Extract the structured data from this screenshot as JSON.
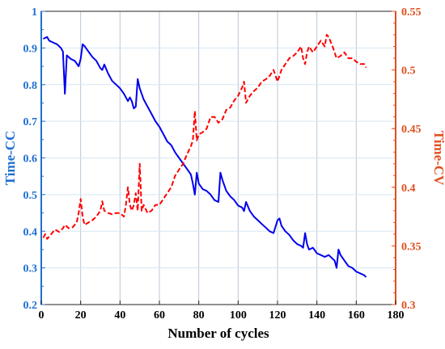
{
  "chart_data": {
    "type": "line",
    "xlabel": "Number of cycles",
    "ylabel_left": "Time-CC",
    "ylabel_right": "Time-CV",
    "xlim": [
      0,
      180
    ],
    "ylim_left": [
      0.2,
      1.0
    ],
    "ylim_right": [
      0.3,
      0.55
    ],
    "xticks": [
      0,
      20,
      40,
      60,
      80,
      100,
      120,
      140,
      160,
      180
    ],
    "yticks_left": [
      0.2,
      0.3,
      0.4,
      0.5,
      0.6,
      0.7,
      0.8,
      0.9,
      1
    ],
    "yticks_right": [
      0.3,
      0.35,
      0.4,
      0.45,
      0.5,
      0.55
    ],
    "grid": true,
    "left_axis_color": "#1f6fd0",
    "right_axis_color": "#e0501e",
    "series": [
      {
        "axis": "left",
        "color": "#0000ee",
        "style": "solid",
        "x": [
          1,
          3,
          4,
          6,
          8,
          10,
          11,
          12,
          13,
          15,
          17,
          19,
          20,
          21,
          22,
          24,
          26,
          28,
          30,
          31,
          32,
          34,
          36,
          38,
          40,
          42,
          44,
          45,
          46,
          47,
          48,
          49,
          50,
          52,
          54,
          56,
          58,
          60,
          62,
          64,
          66,
          68,
          70,
          72,
          74,
          76,
          77,
          78,
          79,
          80,
          82,
          84,
          86,
          88,
          90,
          91,
          92,
          94,
          96,
          98,
          100,
          102,
          103,
          104,
          106,
          108,
          110,
          112,
          114,
          116,
          118,
          120,
          121,
          122,
          124,
          126,
          128,
          130,
          132,
          133,
          134,
          135,
          136,
          138,
          140,
          142,
          144,
          146,
          148,
          149,
          150,
          151,
          152,
          154,
          156,
          158,
          160,
          162,
          164,
          165
        ],
        "y": [
          0.925,
          0.93,
          0.92,
          0.915,
          0.91,
          0.9,
          0.89,
          0.775,
          0.88,
          0.87,
          0.865,
          0.85,
          0.87,
          0.91,
          0.905,
          0.89,
          0.875,
          0.865,
          0.845,
          0.84,
          0.855,
          0.83,
          0.81,
          0.8,
          0.79,
          0.775,
          0.755,
          0.765,
          0.755,
          0.735,
          0.74,
          0.815,
          0.79,
          0.76,
          0.74,
          0.72,
          0.7,
          0.685,
          0.665,
          0.645,
          0.635,
          0.615,
          0.6,
          0.585,
          0.57,
          0.555,
          0.53,
          0.5,
          0.56,
          0.53,
          0.515,
          0.51,
          0.5,
          0.485,
          0.48,
          0.56,
          0.54,
          0.51,
          0.495,
          0.485,
          0.47,
          0.465,
          0.455,
          0.48,
          0.455,
          0.44,
          0.43,
          0.42,
          0.41,
          0.4,
          0.395,
          0.43,
          0.435,
          0.415,
          0.4,
          0.39,
          0.375,
          0.365,
          0.36,
          0.355,
          0.395,
          0.365,
          0.35,
          0.355,
          0.34,
          0.335,
          0.33,
          0.335,
          0.325,
          0.32,
          0.3,
          0.35,
          0.335,
          0.32,
          0.305,
          0.3,
          0.29,
          0.285,
          0.28,
          0.275
        ]
      },
      {
        "axis": "right",
        "color": "#ff0000",
        "style": "dashed",
        "x": [
          1,
          2,
          3,
          5,
          7,
          9,
          11,
          12,
          14,
          16,
          18,
          19,
          20,
          21,
          22,
          24,
          26,
          28,
          30,
          31,
          32,
          34,
          36,
          38,
          40,
          42,
          43,
          44,
          45,
          46,
          47,
          48,
          49,
          50,
          51,
          52,
          54,
          56,
          58,
          60,
          62,
          64,
          66,
          68,
          70,
          72,
          74,
          76,
          77,
          78,
          79,
          80,
          82,
          84,
          86,
          88,
          90,
          92,
          94,
          96,
          98,
          100,
          102,
          103,
          104,
          106,
          108,
          110,
          112,
          114,
          116,
          118,
          120,
          121,
          122,
          124,
          126,
          128,
          130,
          132,
          133,
          134,
          135,
          136,
          138,
          140,
          142,
          144,
          145,
          146,
          148,
          150,
          152,
          154,
          156,
          158,
          160,
          162,
          164,
          165
        ],
        "y": [
          0.357,
          0.36,
          0.356,
          0.36,
          0.364,
          0.362,
          0.365,
          0.368,
          0.365,
          0.366,
          0.37,
          0.378,
          0.39,
          0.375,
          0.368,
          0.37,
          0.372,
          0.375,
          0.38,
          0.388,
          0.38,
          0.378,
          0.377,
          0.378,
          0.378,
          0.375,
          0.385,
          0.4,
          0.385,
          0.38,
          0.385,
          0.395,
          0.38,
          0.42,
          0.38,
          0.385,
          0.378,
          0.38,
          0.385,
          0.385,
          0.39,
          0.395,
          0.4,
          0.41,
          0.415,
          0.42,
          0.428,
          0.435,
          0.44,
          0.465,
          0.44,
          0.445,
          0.447,
          0.45,
          0.46,
          0.46,
          0.455,
          0.458,
          0.466,
          0.468,
          0.474,
          0.478,
          0.485,
          0.49,
          0.472,
          0.478,
          0.482,
          0.485,
          0.49,
          0.492,
          0.495,
          0.5,
          0.49,
          0.495,
          0.5,
          0.505,
          0.51,
          0.512,
          0.515,
          0.52,
          0.51,
          0.505,
          0.515,
          0.52,
          0.515,
          0.52,
          0.525,
          0.52,
          0.53,
          0.528,
          0.52,
          0.51,
          0.512,
          0.515,
          0.51,
          0.51,
          0.507,
          0.505,
          0.505,
          0.502
        ]
      }
    ]
  }
}
